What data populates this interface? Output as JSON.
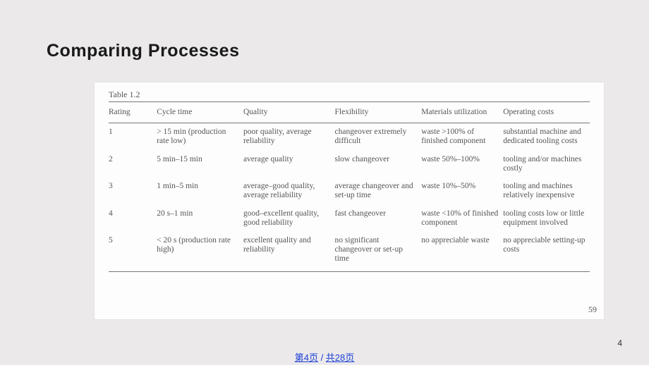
{
  "title": "Comparing Processes",
  "table": {
    "caption": "Table 1.2",
    "columns": [
      "Rating",
      "Cycle time",
      "Quality",
      "Flexibility",
      "Materials utilization",
      "Operating costs"
    ],
    "rows": [
      [
        "1",
        "> 15 min (production rate low)",
        "poor quality, average reliability",
        "changeover extremely difficult",
        "waste >100% of finished component",
        "substantial machine and dedicated tooling costs"
      ],
      [
        "2",
        "5 min–15 min",
        "average quality",
        "slow changeover",
        "waste 50%–100%",
        "tooling and/or machines costly"
      ],
      [
        "3",
        "1 min–5 min",
        "average–good quality, average reliability",
        "average changeover and set-up time",
        "waste 10%–50%",
        "tooling and machines relatively inexpensive"
      ],
      [
        "4",
        "20 s–1 min",
        "good–excellent quality, good reliability",
        "fast changeover",
        "waste <10% of finished component",
        "tooling costs low or little equipment involved"
      ],
      [
        "5",
        "< 20 s (production rate high)",
        "excellent quality and reliability",
        "no significant changeover or set-up time",
        "no appreciable waste",
        "no appreciable setting-up costs"
      ]
    ],
    "source_page": "59"
  },
  "slide_number": "4",
  "footer": {
    "left": "第4页",
    "sep": " / ",
    "right": "共28页"
  }
}
